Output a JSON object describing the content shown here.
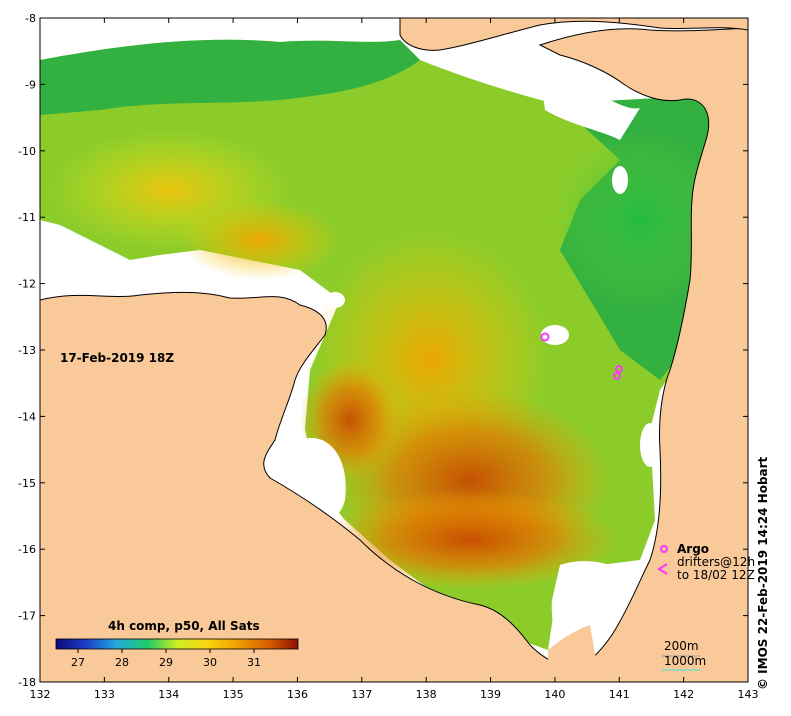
{
  "map": {
    "timestamp": "17-Feb-2019 18Z",
    "credit": "©  IMOS 22-Feb-2019 14:24 Hobart",
    "lon_ticks": [
      "132",
      "133",
      "134",
      "135",
      "136",
      "137",
      "138",
      "139",
      "140",
      "141",
      "142",
      "143"
    ],
    "lat_ticks": [
      "-8",
      "-9",
      "-10",
      "-11",
      "-12",
      "-13",
      "-14",
      "-15",
      "-16",
      "-17",
      "-18"
    ],
    "lon_range": [
      132,
      143
    ],
    "lat_range": [
      -18,
      -8
    ]
  },
  "colorbar": {
    "title": "4h comp, p50, All Sats",
    "labels": [
      "27",
      "28",
      "29",
      "30",
      "31"
    ],
    "range": [
      26.5,
      32
    ]
  },
  "legend": {
    "argo_label": "Argo",
    "drifters_line1": "drifters@12h",
    "drifters_line2": "to 18/02 12Z",
    "depth_200": "200m",
    "depth_1000": "1000m"
  },
  "colors": {
    "land": "#f9c99a",
    "no_data": "#ffffff",
    "argo": "#ff33ff",
    "depth_1000": "#66ddcc"
  }
}
